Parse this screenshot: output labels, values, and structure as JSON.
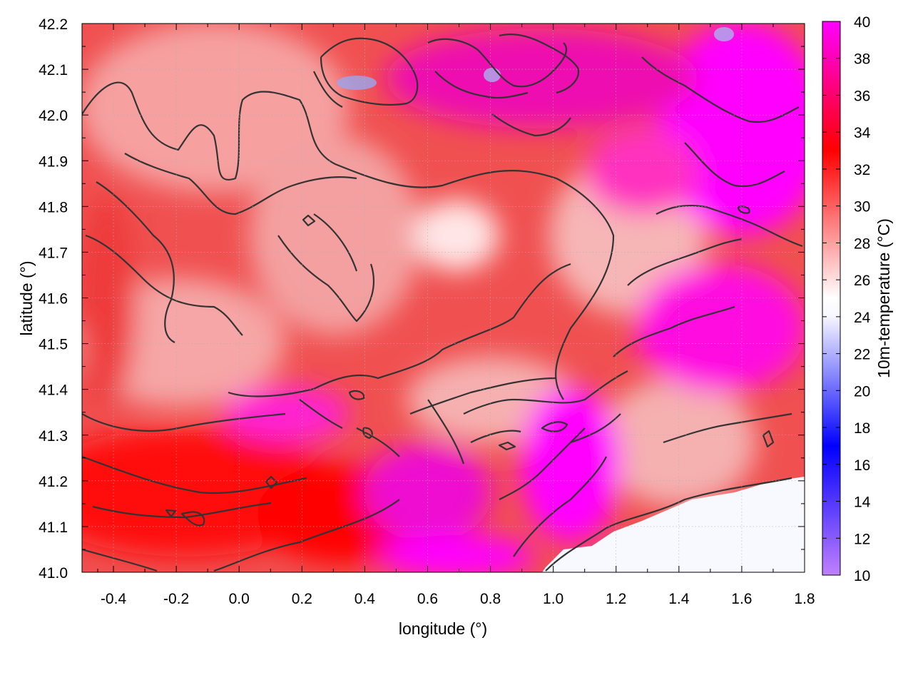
{
  "chart_data": {
    "type": "heatmap",
    "title": "",
    "xlabel": "longitude (°)",
    "ylabel": "latitude (°)",
    "colorbar_label": "10m-temperature (°C)",
    "xlim": [
      -0.5,
      1.8
    ],
    "ylim": [
      41.0,
      42.2
    ],
    "clim": [
      10,
      40
    ],
    "x_ticks": [
      "-0.4",
      "-0.2",
      "0.0",
      "0.2",
      "0.4",
      "0.6",
      "0.8",
      "1.0",
      "1.2",
      "1.4",
      "1.6",
      "1.8"
    ],
    "y_ticks": [
      "41.0",
      "41.1",
      "41.2",
      "41.3",
      "41.4",
      "41.5",
      "41.6",
      "41.7",
      "41.8",
      "41.9",
      "42.0",
      "42.1",
      "42.2"
    ],
    "colorbar_ticks": [
      "10",
      "12",
      "14",
      "16",
      "18",
      "20",
      "22",
      "24",
      "26",
      "28",
      "30",
      "32",
      "34",
      "36",
      "38",
      "40"
    ],
    "colormap": [
      {
        "value": 10,
        "color": "#c080ff"
      },
      {
        "value": 17,
        "color": "#0000ff"
      },
      {
        "value": 24,
        "color": "#f6f6ff"
      },
      {
        "value": 25,
        "color": "#ffffff"
      },
      {
        "value": 33,
        "color": "#ff0000"
      },
      {
        "value": 40,
        "color": "#ff00ff"
      }
    ],
    "grid": true,
    "contour_color": "#333333"
  }
}
